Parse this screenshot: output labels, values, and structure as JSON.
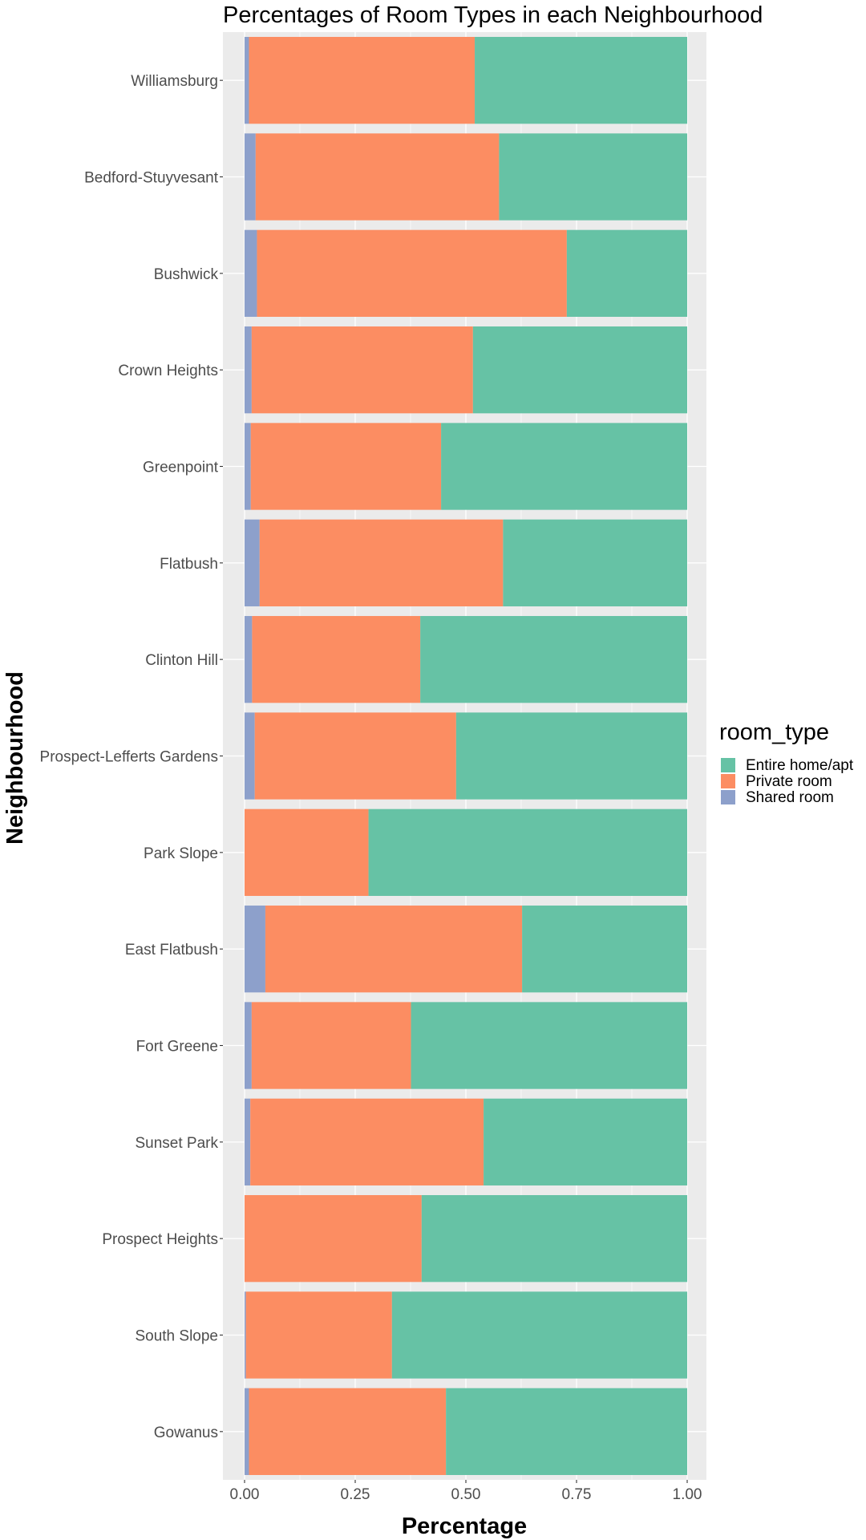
{
  "chart_data": {
    "type": "bar",
    "orientation": "horizontal",
    "stacked": true,
    "title": "Percentages of Room Types in each Neighbourhood",
    "xlabel": "Percentage",
    "ylabel": "Neighbourhood",
    "xlim": [
      0,
      1
    ],
    "x_ticks": [
      "0.00",
      "0.25",
      "0.50",
      "0.75",
      "1.00"
    ],
    "x_tick_values": [
      0,
      0.25,
      0.5,
      0.75,
      1
    ],
    "grid": true,
    "legend": {
      "title": "room_type",
      "placement": "right"
    },
    "categories": [
      "Williamsburg",
      "Bedford-Stuyvesant",
      "Bushwick",
      "Crown Heights",
      "Greenpoint",
      "Flatbush",
      "Clinton Hill",
      "Prospect-Lefferts Gardens",
      "Park Slope",
      "East Flatbush",
      "Fort Greene",
      "Sunset Park",
      "Prospect Heights",
      "South Slope",
      "Gowanus"
    ],
    "series": [
      {
        "name": "Shared room",
        "color": "#8DA0CB",
        "values": [
          0.01,
          0.025,
          0.028,
          0.016,
          0.014,
          0.034,
          0.017,
          0.023,
          0.0,
          0.047,
          0.016,
          0.013,
          0.0,
          0.003,
          0.01
        ]
      },
      {
        "name": "Private room",
        "color": "#FC8D62",
        "values": [
          0.51,
          0.55,
          0.7,
          0.5,
          0.43,
          0.55,
          0.38,
          0.455,
          0.28,
          0.58,
          0.36,
          0.527,
          0.4,
          0.33,
          0.445
        ]
      },
      {
        "name": "Entire home/apt",
        "color": "#66C2A5",
        "values": [
          0.48,
          0.425,
          0.272,
          0.484,
          0.556,
          0.416,
          0.603,
          0.522,
          0.72,
          0.373,
          0.624,
          0.46,
          0.6,
          0.667,
          0.545
        ]
      }
    ],
    "legend_order": [
      "Entire home/apt",
      "Private room",
      "Shared room"
    ]
  }
}
